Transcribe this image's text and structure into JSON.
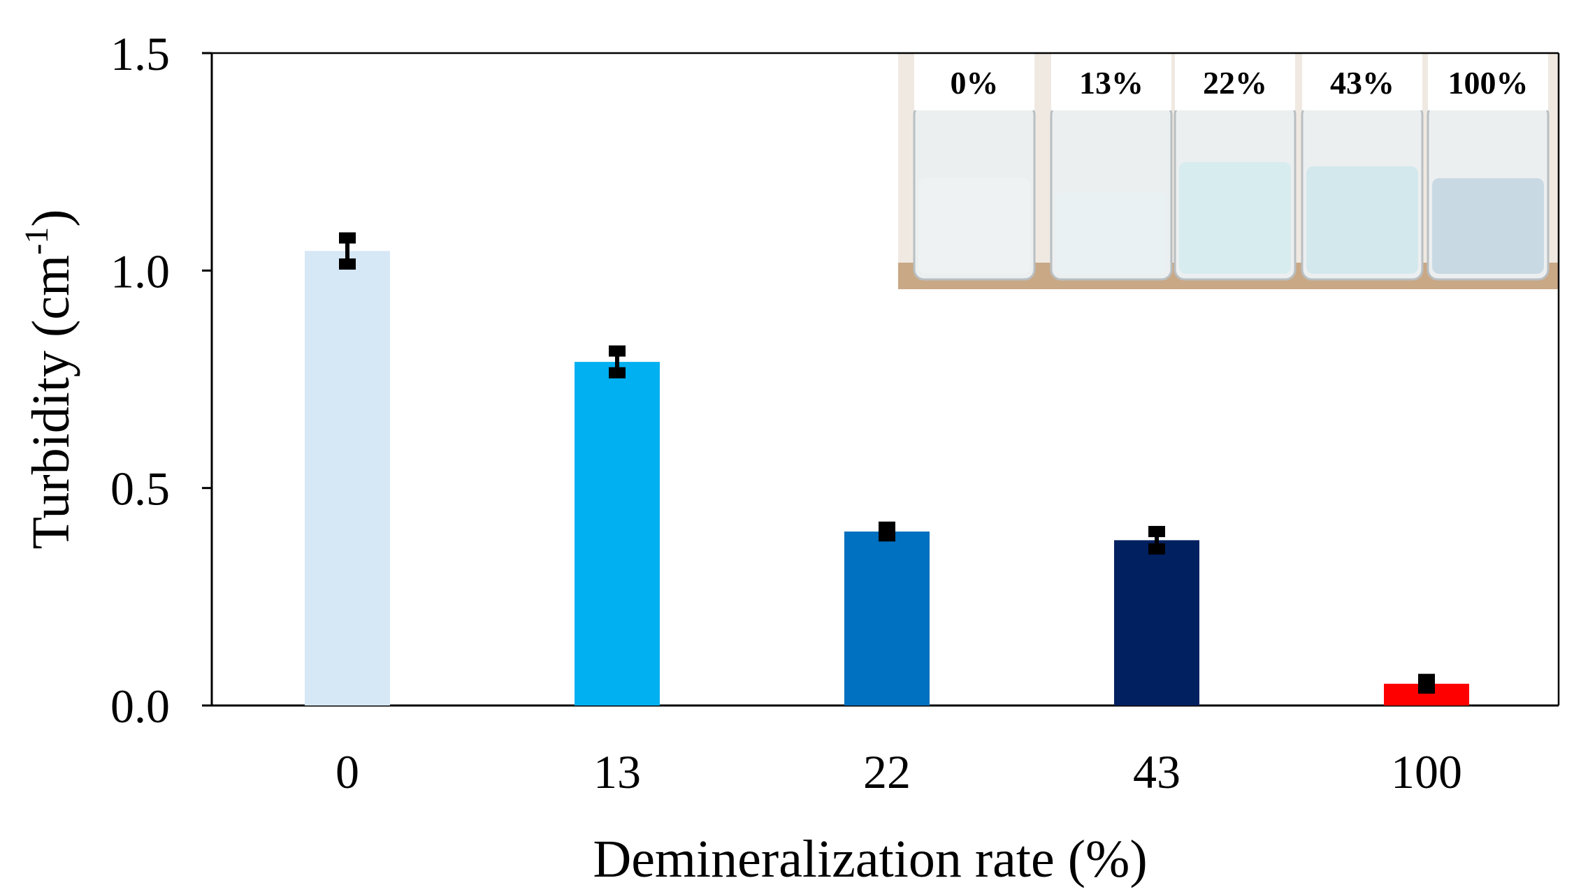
{
  "chart_data": {
    "type": "bar",
    "title": "",
    "xlabel": "Demineralization rate (%)",
    "ylabel_main": "Turbidity (cm",
    "ylabel_sup": "-1",
    "ylabel_close": ")",
    "ylim": [
      0,
      1.5
    ],
    "yticks": [
      "0.0",
      "0.5",
      "1.0",
      "1.5"
    ],
    "ytick_values": [
      0,
      0.5,
      1.0,
      1.5
    ],
    "categories": [
      "0",
      "13",
      "22",
      "43",
      "100"
    ],
    "values": [
      1.045,
      0.79,
      0.4,
      0.38,
      0.05
    ],
    "errors": [
      0.03,
      0.025,
      0.01,
      0.02,
      0.01
    ],
    "bar_colors": [
      "#d6e7f5",
      "#00b0f0",
      "#0070c0",
      "#002060",
      "#ff0000"
    ],
    "error_color": "#000000",
    "grid": false,
    "legend": "none"
  },
  "inset": {
    "description_labels": [
      "0%",
      "13%",
      "22%",
      "43%",
      "100%"
    ],
    "vial_liquid_colors": [
      "#eef2f3",
      "#e9f1f2",
      "#d7ecef",
      "#d3e8ec",
      "#c9d9e3"
    ]
  }
}
